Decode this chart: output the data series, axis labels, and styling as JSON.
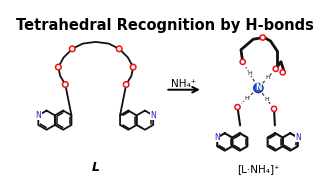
{
  "title": "Tetrahedral Recognition by H-bonds",
  "title_fontsize": 10.5,
  "title_fontweight": "bold",
  "bg_color": "#ffffff",
  "arrow_label": "NH₄⁺",
  "left_label": "L",
  "right_label": "[L·NH₄]⁺",
  "oxygen_color": "#ee1111",
  "nitrogen_color": "#2222cc",
  "nitrogen_center_color": "#3355cc",
  "bond_color": "#111111",
  "fig_width": 3.29,
  "fig_height": 1.89,
  "dpi": 100
}
